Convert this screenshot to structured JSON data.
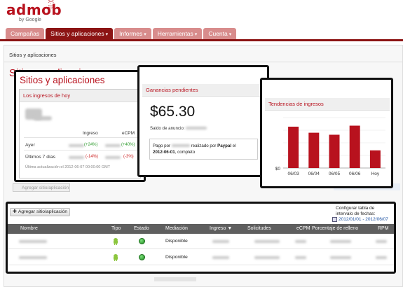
{
  "brand": {
    "name": "admob",
    "by": "by Google",
    "accent": "#b8121e",
    "tab_active": "#8c1414",
    "tab_inactive": "#d88c8c"
  },
  "tabs": [
    {
      "label": "Campañas",
      "active": false,
      "chevron": false
    },
    {
      "label": "Sitios y aplicaciones",
      "active": true,
      "chevron": true
    },
    {
      "label": "Informes",
      "active": false,
      "chevron": true
    },
    {
      "label": "Herramientas",
      "active": false,
      "chevron": true
    },
    {
      "label": "Cuenta",
      "active": false,
      "chevron": true
    }
  ],
  "background": {
    "breadcrumb": "Sitios y aplicaciones",
    "title": "Sitios y aplicaciones",
    "add_button": "Agregar sitio/aplicación"
  },
  "earnings_today": {
    "title": "Sitios y aplicaciones",
    "panel_header": "Los ingresos de hoy",
    "col_ingreso": "Ingreso",
    "col_ecpm": "eCPM",
    "rows": [
      {
        "label": "Ayer",
        "ingreso_change": "(+24%)",
        "ingreso_trend": "up",
        "ecpm_change": "(+40%)",
        "ecpm_trend": "up"
      },
      {
        "label": "Últimos 7 días",
        "ingreso_change": "(-14%)",
        "ingreso_trend": "down",
        "ecpm_change": "(-3%)",
        "ecpm_trend": "down"
      }
    ],
    "last_update": "Última actualización el 2012-06-07 00:00:00 GMT"
  },
  "pending": {
    "header": "Ganancias pendientes",
    "amount": "$65.30",
    "saldo": "Saldo de anuncio:",
    "pago_prefix": "Pago por",
    "pago_mid": "realizado por",
    "pago_method": "Paypal",
    "pago_on": "el",
    "pago_date": "2012-06-01",
    "pago_suffix": ", completo"
  },
  "trends": {
    "header": "Tendencias de ingresos"
  },
  "chart_data": {
    "type": "bar",
    "title": "Tendencias de ingresos",
    "categories": [
      "06/03",
      "06/04",
      "06/05",
      "06/06",
      "Hoy"
    ],
    "values": [
      0.82,
      0.7,
      0.66,
      0.84,
      0.35
    ],
    "y_tick_label": "$0",
    "bar_color": "#b8121e",
    "grid": true
  },
  "sites_table": {
    "add_button": "Agregar sitio/aplicación",
    "config_label": "Configurar tabla de intervalo de fechas:",
    "date_range": "2012/01/01 - 2012/06/07",
    "columns": [
      "Nombre",
      "Tipo",
      "Estado",
      "Mediación",
      "Ingreso",
      "Solicitudes",
      "eCPM",
      "Porcentaje de relleno",
      "RPM"
    ],
    "sort_indicator": "▼",
    "rows": [
      {
        "tipo_icon": "android-icon",
        "estado_icon": "status-active-icon",
        "mediacion": "Disponible"
      },
      {
        "tipo_icon": "android-icon",
        "estado_icon": "status-active-icon",
        "mediacion": "Disponible"
      }
    ]
  }
}
